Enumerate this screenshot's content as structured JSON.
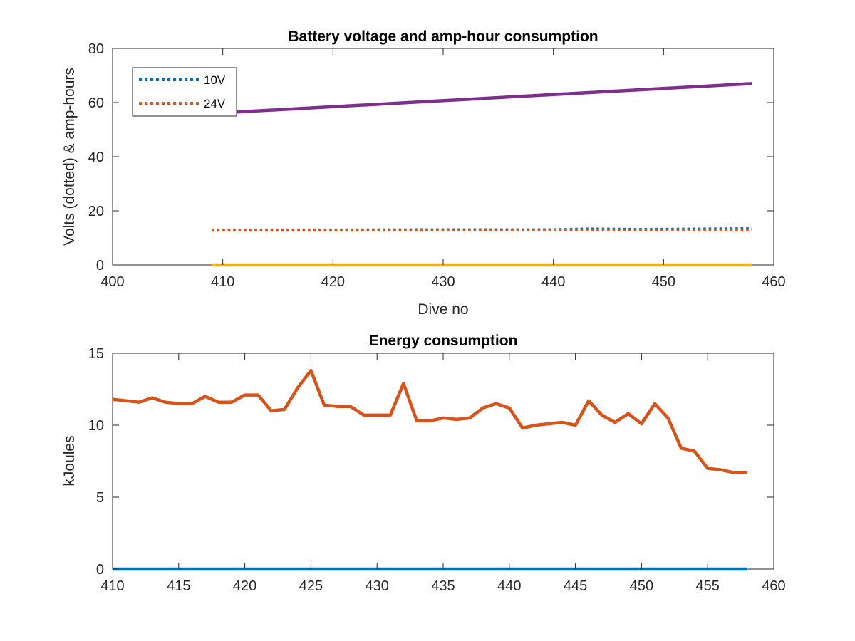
{
  "chart_data": [
    {
      "type": "line",
      "title": "Battery voltage and amp-hour consumption",
      "xlabel": "Dive no",
      "ylabel": "Volts (dotted) & amp-hours",
      "xlim": [
        400,
        460
      ],
      "ylim": [
        0,
        80
      ],
      "xticks": [
        400,
        410,
        420,
        430,
        440,
        450,
        460
      ],
      "yticks": [
        0,
        20,
        40,
        60,
        80
      ],
      "legend_placement": "top-left",
      "series": [
        {
          "name": "10V",
          "style": "dotted",
          "color": "#0072BD",
          "x": [
            409,
            420,
            430,
            440,
            443,
            448,
            458
          ],
          "y": [
            13.0,
            13.0,
            13.1,
            13.1,
            13.4,
            13.2,
            13.5
          ]
        },
        {
          "name": "24V",
          "style": "dotted",
          "color": "#D95319",
          "x": [
            409,
            420,
            430,
            440,
            450,
            458
          ],
          "y": [
            12.8,
            12.8,
            12.9,
            12.9,
            12.9,
            12.8
          ]
        },
        {
          "style": "solid",
          "color": "#7E2F8E",
          "x": [
            409,
            458
          ],
          "y": [
            56,
            67
          ]
        },
        {
          "style": "solid",
          "color": "#EDB120",
          "x": [
            409,
            458
          ],
          "y": [
            0,
            0
          ]
        }
      ]
    },
    {
      "type": "line",
      "title": "Energy consumption",
      "xlabel": "",
      "ylabel": "kJoules",
      "xlim": [
        410,
        460
      ],
      "ylim": [
        0,
        15
      ],
      "xticks": [
        410,
        415,
        420,
        425,
        430,
        435,
        440,
        445,
        450,
        455,
        460
      ],
      "yticks": [
        0,
        5,
        10,
        15
      ],
      "series": [
        {
          "style": "solid",
          "color": "#D95319",
          "x": [
            410,
            411,
            412,
            413,
            414,
            415,
            416,
            417,
            418,
            419,
            420,
            421,
            422,
            423,
            424,
            425,
            426,
            427,
            428,
            429,
            430,
            431,
            432,
            433,
            434,
            435,
            436,
            437,
            438,
            439,
            440,
            441,
            442,
            443,
            444,
            445,
            446,
            447,
            448,
            449,
            450,
            451,
            452,
            453,
            454,
            455,
            456,
            457,
            458
          ],
          "y": [
            11.8,
            11.7,
            11.6,
            11.9,
            11.6,
            11.5,
            11.5,
            12.0,
            11.6,
            11.6,
            12.1,
            12.1,
            11.0,
            11.1,
            12.6,
            13.8,
            11.4,
            11.3,
            11.3,
            10.7,
            10.7,
            10.7,
            12.9,
            10.3,
            10.3,
            10.5,
            10.4,
            10.5,
            11.2,
            11.5,
            11.2,
            9.8,
            10.0,
            10.1,
            10.2,
            10.0,
            11.7,
            10.7,
            10.2,
            10.8,
            10.1,
            11.5,
            10.5,
            8.4,
            8.2,
            7.0,
            6.9,
            6.7,
            6.7
          ]
        },
        {
          "style": "solid",
          "color": "#0072BD",
          "x": [
            410,
            458
          ],
          "y": [
            0,
            0
          ]
        }
      ]
    }
  ]
}
